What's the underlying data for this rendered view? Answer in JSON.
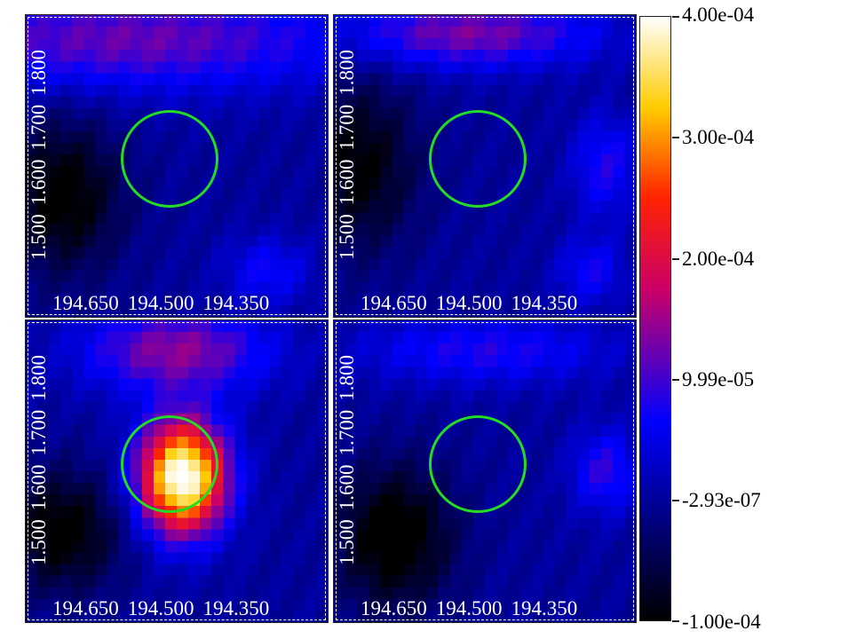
{
  "x_ticks": [
    "194.650",
    "194.500",
    "194.350"
  ],
  "y_ticks": [
    "1.500",
    "1.600",
    "1.700",
    "1.800"
  ],
  "colorbar": {
    "ticks": [
      "4.00e-04",
      "3.00e-04",
      "2.00e-04",
      "9.99e-05",
      "-2.93e-07",
      "-1.00e-04"
    ],
    "min": -0.0001,
    "max": 0.0004
  },
  "colors": {
    "circle": "#22dd22",
    "text": "#ffffff"
  },
  "panels": [
    {
      "name": "top-left",
      "blobs": [
        [
          0.35,
          0.08,
          0.55,
          0.12,
          0.00012
        ],
        [
          0.12,
          0.6,
          0.14,
          0.18,
          -0.00011
        ],
        [
          0.8,
          0.85,
          0.1,
          0.08,
          7e-05
        ]
      ]
    },
    {
      "name": "top-right",
      "blobs": [
        [
          0.45,
          0.06,
          0.3,
          0.08,
          0.00013
        ],
        [
          0.08,
          0.5,
          0.14,
          0.2,
          -0.0001
        ],
        [
          0.9,
          0.5,
          0.08,
          0.12,
          8e-05
        ],
        [
          0.85,
          0.85,
          0.08,
          0.08,
          7e-05
        ]
      ]
    },
    {
      "name": "bottom-left",
      "blobs": [
        [
          0.52,
          0.52,
          0.1,
          0.13,
          0.00042
        ],
        [
          0.5,
          0.1,
          0.22,
          0.1,
          0.00014
        ],
        [
          0.12,
          0.7,
          0.14,
          0.14,
          -0.00011
        ]
      ]
    },
    {
      "name": "bottom-right",
      "blobs": [
        [
          0.2,
          0.72,
          0.14,
          0.17,
          -0.00012
        ],
        [
          0.9,
          0.5,
          0.08,
          0.1,
          9e-05
        ],
        [
          0.5,
          0.1,
          0.3,
          0.08,
          8e-05
        ]
      ]
    }
  ]
}
